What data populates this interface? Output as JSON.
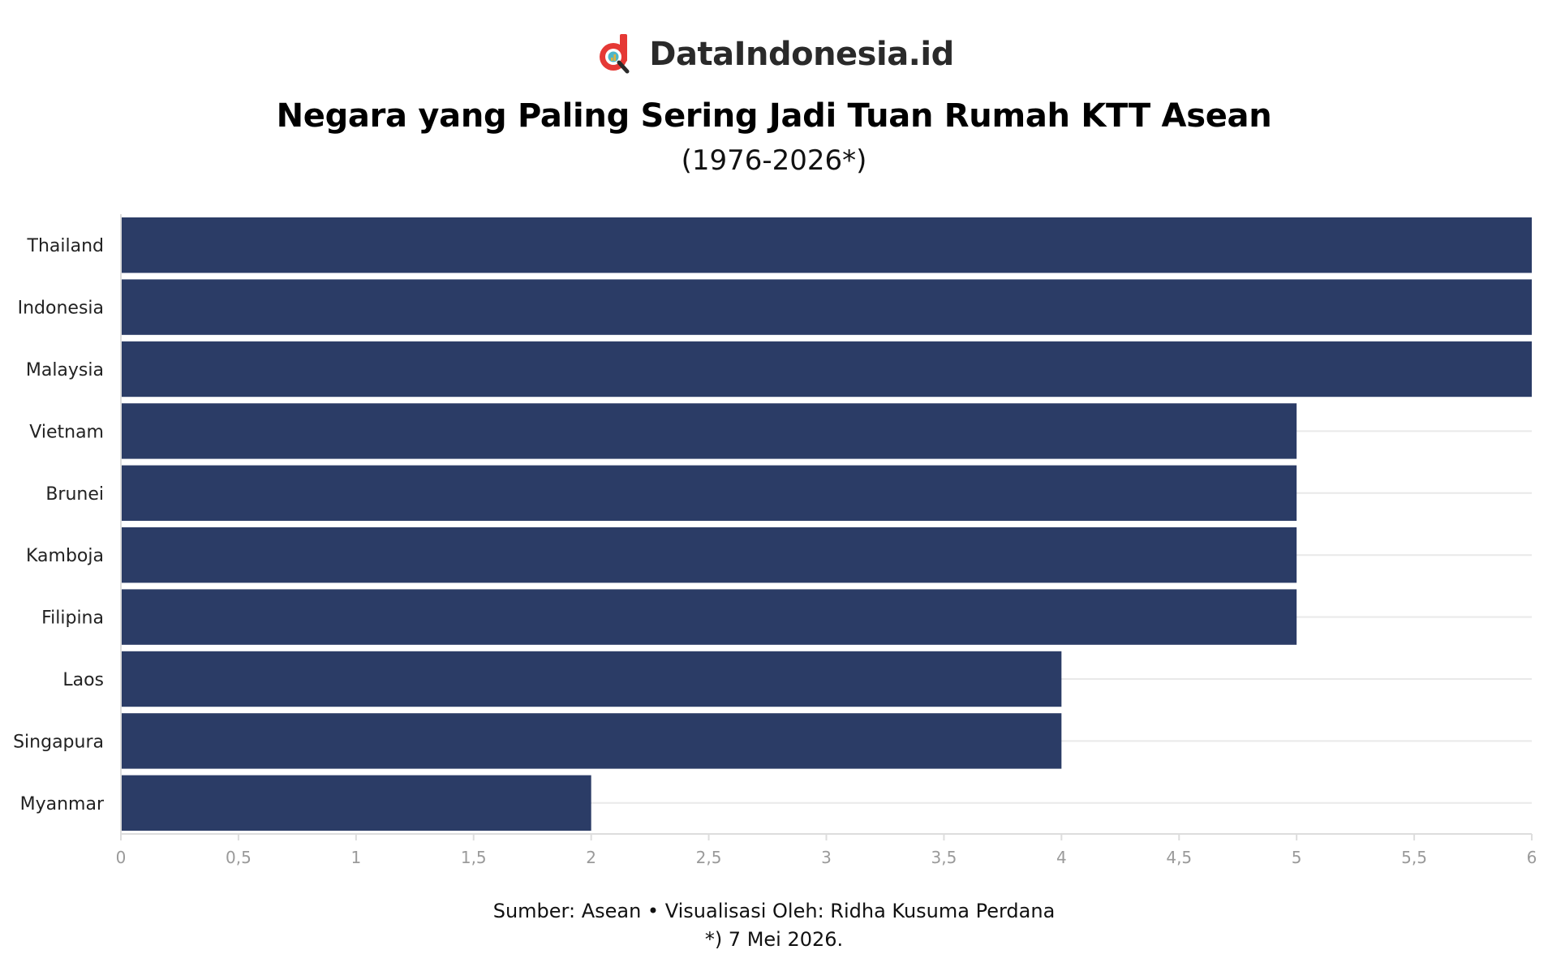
{
  "brand": {
    "name": "DataIndonesia.id",
    "logo_icon": "datainddonesia-logo-icon",
    "logo_color": "#e53935"
  },
  "chart_data": {
    "type": "bar",
    "orientation": "horizontal",
    "title": "Negara yang Paling Sering Jadi Tuan Rumah KTT Asean",
    "subtitle": "(1976-2026*)",
    "categories": [
      "Thailand",
      "Indonesia",
      "Malaysia",
      "Vietnam",
      "Brunei",
      "Kamboja",
      "Filipina",
      "Laos",
      "Singapura",
      "Myanmar"
    ],
    "values": [
      6,
      6,
      6,
      5,
      5,
      5,
      5,
      4,
      4,
      2
    ],
    "xlim": [
      0,
      6
    ],
    "x_ticks": [
      0,
      0.5,
      1,
      1.5,
      2,
      2.5,
      3,
      3.5,
      4,
      4.5,
      5,
      5.5,
      6
    ],
    "x_tick_labels": [
      "0",
      "0,5",
      "1",
      "1,5",
      "2",
      "2,5",
      "3",
      "3,5",
      "4",
      "4,5",
      "5",
      "5,5",
      "6"
    ],
    "xlabel": "",
    "ylabel": "",
    "grid": true,
    "legend": "none",
    "bar_color": "#2b3c66",
    "grid_color": "#e9e9e9",
    "tick_label_color": "#9a9a9a"
  },
  "footer": {
    "source_line": "Sumber: Asean • Visualisasi Oleh: Ridha Kusuma Perdana",
    "note_line": "*) 7 Mei 2026."
  }
}
